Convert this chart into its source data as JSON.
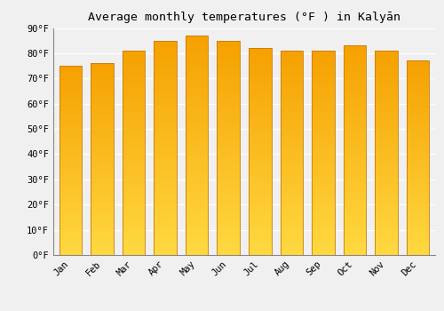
{
  "title": "Average monthly temperatures (°F ) in Kalyān",
  "months": [
    "Jan",
    "Feb",
    "Mar",
    "Apr",
    "May",
    "Jun",
    "Jul",
    "Aug",
    "Sep",
    "Oct",
    "Nov",
    "Dec"
  ],
  "values": [
    75,
    76,
    81,
    85,
    87,
    85,
    82,
    81,
    81,
    83,
    81,
    77
  ],
  "bar_color_bottom": "#FFD840",
  "bar_color_top": "#F5A000",
  "bar_edge_color": "#C87800",
  "background_color": "#f0f0f0",
  "grid_color": "#ffffff",
  "ylim": [
    0,
    90
  ],
  "yticks": [
    0,
    10,
    20,
    30,
    40,
    50,
    60,
    70,
    80,
    90
  ],
  "title_fontsize": 9.5,
  "tick_fontsize": 7.5,
  "bar_width": 0.72,
  "n_grad": 80
}
